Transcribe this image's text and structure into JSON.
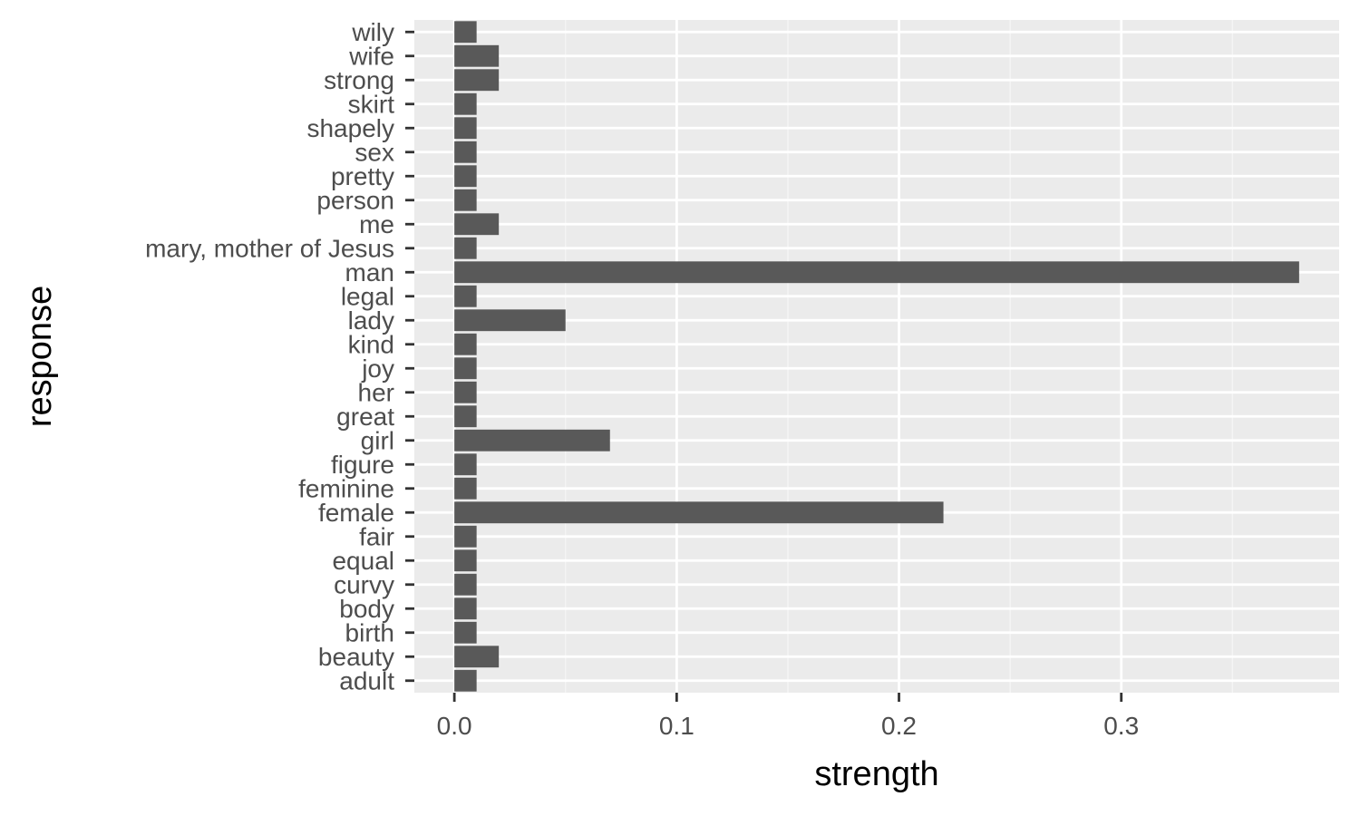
{
  "chart_data": {
    "type": "bar",
    "orientation": "horizontal",
    "title": "",
    "xlabel": "strength",
    "ylabel": "response",
    "xlim": [
      -0.018,
      0.398
    ],
    "x_ticks": [
      0.0,
      0.1,
      0.2,
      0.3
    ],
    "x_tick_labels": [
      "0.0",
      "0.1",
      "0.2",
      "0.3"
    ],
    "grid": true,
    "legend": "none",
    "categories": [
      "wily",
      "wife",
      "strong",
      "skirt",
      "shapely",
      "sex",
      "pretty",
      "person",
      "me",
      "mary, mother of Jesus",
      "man",
      "legal",
      "lady",
      "kind",
      "joy",
      "her",
      "great",
      "girl",
      "figure",
      "feminine",
      "female",
      "fair",
      "equal",
      "curvy",
      "body",
      "birth",
      "beauty",
      "adult"
    ],
    "values": [
      0.01,
      0.02,
      0.02,
      0.01,
      0.01,
      0.01,
      0.01,
      0.01,
      0.02,
      0.01,
      0.38,
      0.01,
      0.05,
      0.01,
      0.01,
      0.01,
      0.01,
      0.07,
      0.01,
      0.01,
      0.22,
      0.01,
      0.01,
      0.01,
      0.01,
      0.01,
      0.02,
      0.01
    ],
    "colors": {
      "panel_background": "#ebebeb",
      "grid_major": "#ffffff",
      "grid_minor": "#f5f5f5",
      "bar_fill": "#595959",
      "tick_label": "#4d4d4d",
      "tick_mark": "#333333",
      "axis_title": "#000000"
    }
  }
}
